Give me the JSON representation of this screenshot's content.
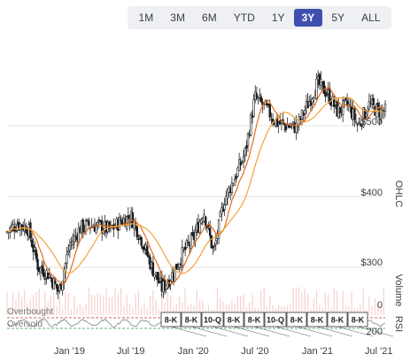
{
  "range_selector": {
    "options": [
      "1M",
      "3M",
      "6M",
      "YTD",
      "1Y",
      "3Y",
      "5Y",
      "ALL"
    ],
    "active": "3Y"
  },
  "panels": {
    "price_label": "OHLC",
    "volume_label": "Volume",
    "rsi_label": "RSI",
    "overbought_label": "Overbought",
    "oversold_label": "Oversold"
  },
  "filings": [
    "8-K",
    "8-K",
    "10-Q",
    "8-K",
    "8-K",
    "10-Q",
    "8-K",
    "8-K",
    "8-K",
    "8-K"
  ],
  "colors": {
    "up": "#2e9f48",
    "down": "#d9453c",
    "ma_fast": "#e36d1e",
    "ma_slow": "#f2a33a",
    "volume": "#f6d2d0",
    "accent": "#3e4fad",
    "grid": "#e6e6e6"
  },
  "chart_data": {
    "type": "candlestick",
    "x_tick_labels": [
      "Jan '19",
      "Jul '19",
      "Jan '20",
      "Jul '20",
      "Jan '21",
      "Jul '21"
    ],
    "y_tick_labels": [
      "$500",
      "$400",
      "$300",
      "0",
      "200"
    ],
    "y_ticks": [
      500,
      400,
      300
    ],
    "ylim": [
      240,
      605
    ],
    "volume_tick": "0",
    "rsi_tick": "200",
    "x_range": [
      "2018-07",
      "2021-07"
    ],
    "close_monthly": [
      {
        "x": "2018-07",
        "close": 350
      },
      {
        "x": "2018-08",
        "close": 362
      },
      {
        "x": "2018-09",
        "close": 355
      },
      {
        "x": "2018-10",
        "close": 300
      },
      {
        "x": "2018-11",
        "close": 290
      },
      {
        "x": "2018-12",
        "close": 265
      },
      {
        "x": "2019-01",
        "close": 330
      },
      {
        "x": "2019-02",
        "close": 355
      },
      {
        "x": "2019-03",
        "close": 360
      },
      {
        "x": "2019-04",
        "close": 358
      },
      {
        "x": "2019-05",
        "close": 352
      },
      {
        "x": "2019-06",
        "close": 365
      },
      {
        "x": "2019-07",
        "close": 372
      },
      {
        "x": "2019-08",
        "close": 340
      },
      {
        "x": "2019-09",
        "close": 300
      },
      {
        "x": "2019-10",
        "close": 270
      },
      {
        "x": "2019-11",
        "close": 290
      },
      {
        "x": "2019-12",
        "close": 320
      },
      {
        "x": "2020-01",
        "close": 340
      },
      {
        "x": "2020-02",
        "close": 380
      },
      {
        "x": "2020-03",
        "close": 320
      },
      {
        "x": "2020-04",
        "close": 395
      },
      {
        "x": "2020-05",
        "close": 425
      },
      {
        "x": "2020-06",
        "close": 460
      },
      {
        "x": "2020-07",
        "close": 540
      },
      {
        "x": "2020-08",
        "close": 525
      },
      {
        "x": "2020-09",
        "close": 505
      },
      {
        "x": "2020-10",
        "close": 500
      },
      {
        "x": "2020-11",
        "close": 498
      },
      {
        "x": "2020-12",
        "close": 528
      },
      {
        "x": "2021-01",
        "close": 560
      },
      {
        "x": "2021-02",
        "close": 545
      },
      {
        "x": "2021-03",
        "close": 520
      },
      {
        "x": "2021-04",
        "close": 530
      },
      {
        "x": "2021-05",
        "close": 500
      },
      {
        "x": "2021-06",
        "close": 530
      },
      {
        "x": "2021-07",
        "close": 520
      }
    ]
  }
}
